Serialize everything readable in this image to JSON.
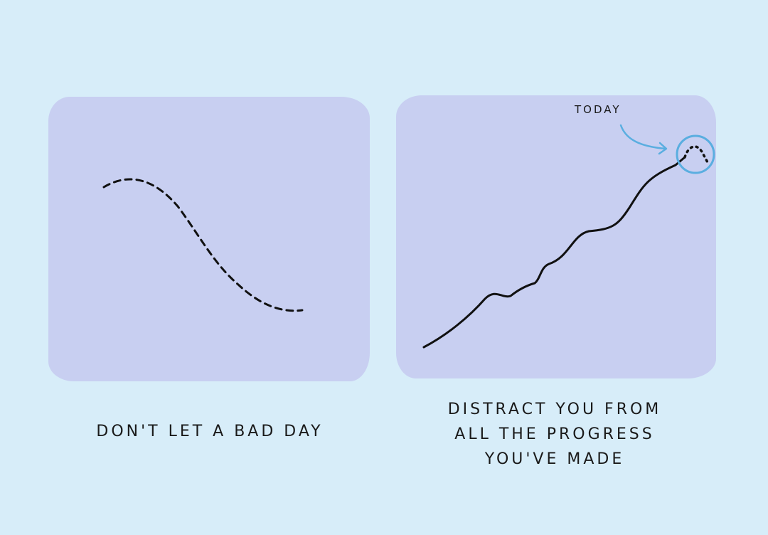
{
  "left_panel": {
    "caption": "DON'T LET A BAD DAY"
  },
  "right_panel": {
    "caption_lines": [
      "DISTRACT YOU FROM",
      "ALL THE PROGRESS",
      "YOU'VE MADE"
    ],
    "annotation": "TODAY"
  },
  "colors": {
    "background": "#d7edf9",
    "panel": "#c8cff1",
    "line": "#111111",
    "highlight": "#5aaee0"
  }
}
